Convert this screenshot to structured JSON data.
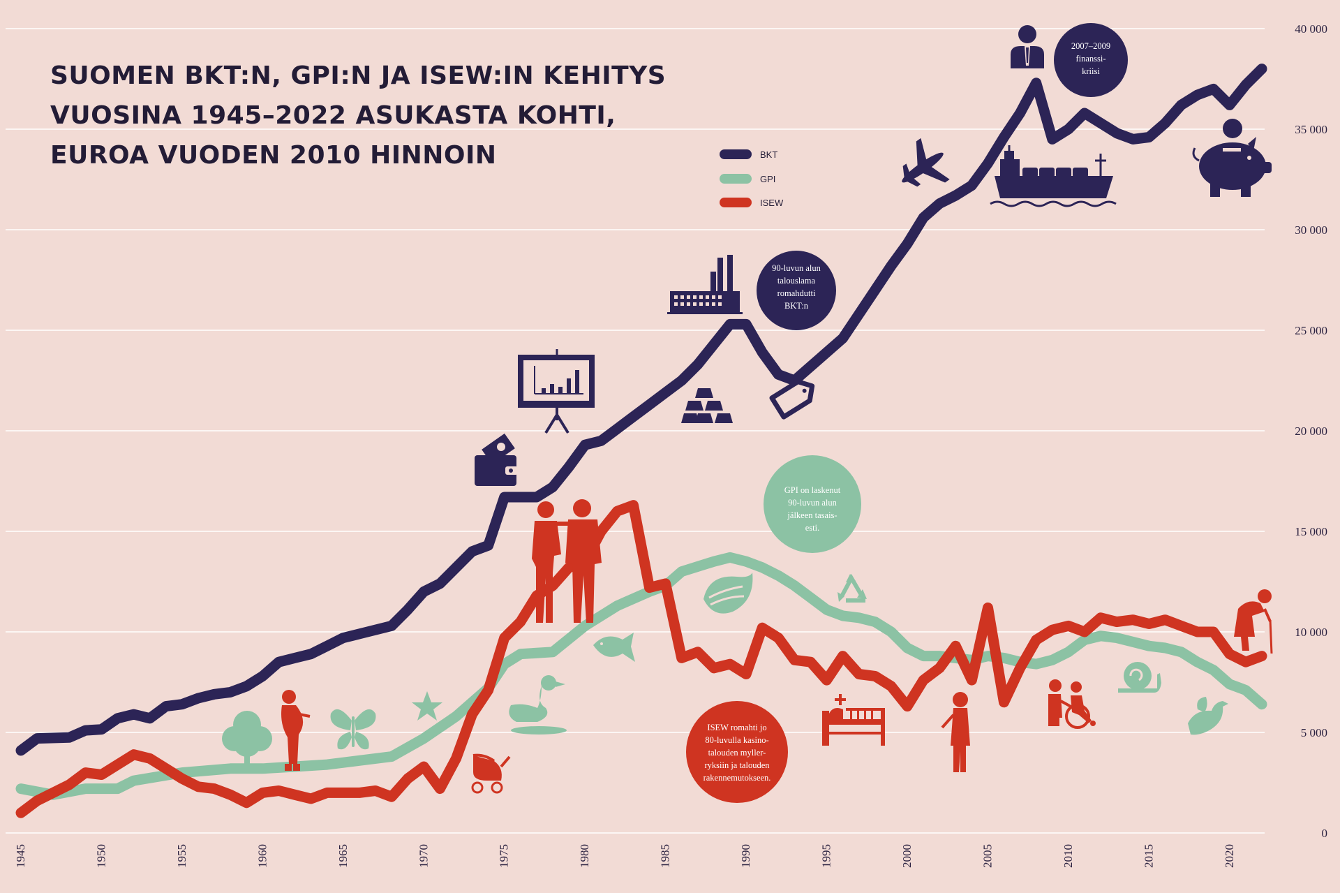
{
  "chart_data": {
    "type": "line",
    "title_lines": [
      "SUOMEN BKT:N, GPI:N JA ISEW:IN KEHITYS",
      "VUOSINA 1945–2022 ASUKASTA KOHTI,",
      "EUROA VUODEN 2010 HINNOIN"
    ],
    "xlim": [
      1945,
      2022
    ],
    "ylim": [
      0,
      40000
    ],
    "x_ticks": [
      "1945",
      "1950",
      "1955",
      "1960",
      "1965",
      "1970",
      "1975",
      "1980",
      "1985",
      "1990",
      "1995",
      "2000",
      "2005",
      "2010",
      "2015",
      "2020"
    ],
    "y_ticks": [
      "0",
      "5 000",
      "10 000",
      "15 000",
      "20 000",
      "25 000",
      "30 000",
      "35 000",
      "40 000"
    ],
    "legend_position": "top-center",
    "grid": "horizontal",
    "colors": {
      "background": "#f2dbd5",
      "BKT": "#2c2456",
      "GPI": "#8cc2a4",
      "ISEW": "#cf3421",
      "grid": "#ffffff"
    },
    "series": [
      {
        "name": "BKT",
        "color": "#2c2456",
        "points": [
          [
            1945,
            4100
          ],
          [
            1946,
            4700
          ],
          [
            1948,
            4750
          ],
          [
            1949,
            5100
          ],
          [
            1950,
            5150
          ],
          [
            1951,
            5700
          ],
          [
            1952,
            5900
          ],
          [
            1953,
            5700
          ],
          [
            1954,
            6300
          ],
          [
            1955,
            6400
          ],
          [
            1956,
            6700
          ],
          [
            1957,
            6900
          ],
          [
            1958,
            7000
          ],
          [
            1959,
            7300
          ],
          [
            1960,
            7800
          ],
          [
            1961,
            8500
          ],
          [
            1962,
            8700
          ],
          [
            1963,
            8900
          ],
          [
            1964,
            9300
          ],
          [
            1965,
            9700
          ],
          [
            1966,
            9900
          ],
          [
            1967,
            10100
          ],
          [
            1968,
            10300
          ],
          [
            1969,
            11100
          ],
          [
            1970,
            12000
          ],
          [
            1971,
            12400
          ],
          [
            1972,
            13200
          ],
          [
            1973,
            14000
          ],
          [
            1974,
            14300
          ],
          [
            1975,
            16700
          ],
          [
            1976,
            16700
          ],
          [
            1977,
            16700
          ],
          [
            1978,
            17200
          ],
          [
            1979,
            18200
          ],
          [
            1980,
            19300
          ],
          [
            1981,
            19500
          ],
          [
            1982,
            20100
          ],
          [
            1983,
            20700
          ],
          [
            1984,
            21300
          ],
          [
            1985,
            21900
          ],
          [
            1986,
            22500
          ],
          [
            1987,
            23300
          ],
          [
            1988,
            24300
          ],
          [
            1989,
            25300
          ],
          [
            1990,
            25300
          ],
          [
            1991,
            23900
          ],
          [
            1992,
            22800
          ],
          [
            1993,
            22500
          ],
          [
            1994,
            23200
          ],
          [
            1995,
            23900
          ],
          [
            1996,
            24600
          ],
          [
            1997,
            25800
          ],
          [
            1998,
            27000
          ],
          [
            1999,
            28200
          ],
          [
            2000,
            29300
          ],
          [
            2001,
            30600
          ],
          [
            2002,
            31300
          ],
          [
            2003,
            31700
          ],
          [
            2004,
            32200
          ],
          [
            2005,
            33300
          ],
          [
            2006,
            34600
          ],
          [
            2007,
            35800
          ],
          [
            2008,
            37300
          ],
          [
            2009,
            34500
          ],
          [
            2010,
            35000
          ],
          [
            2011,
            35800
          ],
          [
            2012,
            35300
          ],
          [
            2013,
            34800
          ],
          [
            2014,
            34500
          ],
          [
            2015,
            34600
          ],
          [
            2016,
            35300
          ],
          [
            2017,
            36200
          ],
          [
            2018,
            36700
          ],
          [
            2019,
            37000
          ],
          [
            2020,
            36200
          ],
          [
            2021,
            37200
          ],
          [
            2022,
            38000
          ]
        ]
      },
      {
        "name": "GPI",
        "color": "#8cc2a4",
        "points": [
          [
            1945,
            2200
          ],
          [
            1947,
            1900
          ],
          [
            1949,
            2200
          ],
          [
            1951,
            2200
          ],
          [
            1952,
            2600
          ],
          [
            1955,
            3000
          ],
          [
            1958,
            3200
          ],
          [
            1960,
            3200
          ],
          [
            1962,
            3300
          ],
          [
            1964,
            3400
          ],
          [
            1966,
            3600
          ],
          [
            1968,
            3800
          ],
          [
            1970,
            4700
          ],
          [
            1972,
            5800
          ],
          [
            1974,
            7200
          ],
          [
            1975,
            8400
          ],
          [
            1976,
            8900
          ],
          [
            1978,
            9000
          ],
          [
            1980,
            10300
          ],
          [
            1982,
            11300
          ],
          [
            1984,
            12000
          ],
          [
            1985,
            12300
          ],
          [
            1986,
            13000
          ],
          [
            1988,
            13500
          ],
          [
            1989,
            13700
          ],
          [
            1990,
            13500
          ],
          [
            1991,
            13200
          ],
          [
            1992,
            12800
          ],
          [
            1993,
            12300
          ],
          [
            1994,
            11700
          ],
          [
            1995,
            11100
          ],
          [
            1996,
            10800
          ],
          [
            1997,
            10700
          ],
          [
            1998,
            10500
          ],
          [
            1999,
            10000
          ],
          [
            2000,
            9200
          ],
          [
            2001,
            8800
          ],
          [
            2002,
            8800
          ],
          [
            2003,
            8700
          ],
          [
            2004,
            8600
          ],
          [
            2005,
            8800
          ],
          [
            2006,
            8700
          ],
          [
            2007,
            8500
          ],
          [
            2008,
            8400
          ],
          [
            2009,
            8600
          ],
          [
            2010,
            9000
          ],
          [
            2011,
            9600
          ],
          [
            2012,
            9800
          ],
          [
            2013,
            9700
          ],
          [
            2014,
            9500
          ],
          [
            2015,
            9300
          ],
          [
            2016,
            9200
          ],
          [
            2017,
            9000
          ],
          [
            2018,
            8500
          ],
          [
            2019,
            8100
          ],
          [
            2020,
            7400
          ],
          [
            2021,
            7100
          ],
          [
            2022,
            6400
          ]
        ]
      },
      {
        "name": "ISEW",
        "color": "#cf3421",
        "points": [
          [
            1945,
            1000
          ],
          [
            1946,
            1600
          ],
          [
            1947,
            2000
          ],
          [
            1948,
            2400
          ],
          [
            1949,
            3000
          ],
          [
            1950,
            2900
          ],
          [
            1951,
            3400
          ],
          [
            1952,
            3900
          ],
          [
            1953,
            3700
          ],
          [
            1954,
            3200
          ],
          [
            1955,
            2700
          ],
          [
            1956,
            2300
          ],
          [
            1957,
            2200
          ],
          [
            1958,
            1900
          ],
          [
            1959,
            1500
          ],
          [
            1960,
            2000
          ],
          [
            1961,
            2100
          ],
          [
            1962,
            1900
          ],
          [
            1963,
            1700
          ],
          [
            1964,
            2000
          ],
          [
            1965,
            2000
          ],
          [
            1966,
            2000
          ],
          [
            1967,
            2100
          ],
          [
            1968,
            1800
          ],
          [
            1969,
            2700
          ],
          [
            1970,
            3300
          ],
          [
            1971,
            2200
          ],
          [
            1972,
            3700
          ],
          [
            1973,
            5900
          ],
          [
            1974,
            7100
          ],
          [
            1975,
            9700
          ],
          [
            1976,
            10500
          ],
          [
            1977,
            11800
          ],
          [
            1978,
            12300
          ],
          [
            1979,
            13200
          ],
          [
            1980,
            13500
          ],
          [
            1981,
            15000
          ],
          [
            1982,
            16000
          ],
          [
            1983,
            16300
          ],
          [
            1984,
            12200
          ],
          [
            1985,
            12400
          ],
          [
            1986,
            8700
          ],
          [
            1987,
            9000
          ],
          [
            1988,
            8200
          ],
          [
            1989,
            8400
          ],
          [
            1990,
            7900
          ],
          [
            1991,
            10200
          ],
          [
            1992,
            9700
          ],
          [
            1993,
            8600
          ],
          [
            1994,
            8500
          ],
          [
            1995,
            7600
          ],
          [
            1996,
            8800
          ],
          [
            1997,
            7900
          ],
          [
            1998,
            7800
          ],
          [
            1999,
            7300
          ],
          [
            2000,
            6300
          ],
          [
            2001,
            7600
          ],
          [
            2002,
            8200
          ],
          [
            2003,
            9300
          ],
          [
            2004,
            7600
          ],
          [
            2005,
            11200
          ],
          [
            2006,
            6500
          ],
          [
            2007,
            8200
          ],
          [
            2008,
            9600
          ],
          [
            2009,
            10100
          ],
          [
            2010,
            10300
          ],
          [
            2011,
            10000
          ],
          [
            2012,
            10700
          ],
          [
            2013,
            10500
          ],
          [
            2014,
            10600
          ],
          [
            2015,
            10400
          ],
          [
            2016,
            10600
          ],
          [
            2017,
            10300
          ],
          [
            2018,
            10000
          ],
          [
            2019,
            10000
          ],
          [
            2020,
            8900
          ],
          [
            2021,
            8500
          ],
          [
            2022,
            8800
          ]
        ]
      }
    ],
    "annotations": [
      {
        "id": "bubble-gdp-drop",
        "lines": [
          "90-luvun alun",
          "talouslama",
          "romahdutti",
          "BKT:n"
        ],
        "color": "#2c2456"
      },
      {
        "id": "bubble-finance-crisis",
        "lines": [
          "2007–2009",
          "finanssi-",
          "kriisi"
        ],
        "color": "#2c2456"
      },
      {
        "id": "bubble-gpi",
        "lines": [
          "GPI on laskenut",
          "90-luvun alun",
          "jälkeen tasais-",
          "esti."
        ],
        "color": "#8cc2a4"
      },
      {
        "id": "bubble-isew",
        "lines": [
          "ISEW romahti jo",
          "80-luvulla kasino-",
          "talouden myller-",
          "ryksiin ja talouden",
          "rakennemutokseen."
        ],
        "color": "#cf3421"
      }
    ]
  },
  "icons": [
    {
      "name": "wallet-icon",
      "color": "#2c2456"
    },
    {
      "name": "presentation-chart-icon",
      "color": "#2c2456"
    },
    {
      "name": "gold-bars-icon",
      "color": "#2c2456"
    },
    {
      "name": "price-tag-icon",
      "color": "#2c2456"
    },
    {
      "name": "factory-icon",
      "color": "#2c2456"
    },
    {
      "name": "airplane-icon",
      "color": "#2c2456"
    },
    {
      "name": "ship-icon",
      "color": "#2c2456"
    },
    {
      "name": "businessman-icon",
      "color": "#2c2456"
    },
    {
      "name": "piggy-bank-icon",
      "color": "#2c2456"
    },
    {
      "name": "tree-icon",
      "color": "#8cc2a4"
    },
    {
      "name": "butterfly-icon",
      "color": "#8cc2a4"
    },
    {
      "name": "starfish-icon",
      "color": "#8cc2a4"
    },
    {
      "name": "duck-icon",
      "color": "#8cc2a4"
    },
    {
      "name": "fish-icon",
      "color": "#8cc2a4"
    },
    {
      "name": "leaf-icon",
      "color": "#8cc2a4"
    },
    {
      "name": "recycle-icon",
      "color": "#8cc2a4"
    },
    {
      "name": "snail-icon",
      "color": "#8cc2a4"
    },
    {
      "name": "bird-icon",
      "color": "#8cc2a4"
    },
    {
      "name": "pregnant-woman-icon",
      "color": "#cf3421"
    },
    {
      "name": "stroller-icon",
      "color": "#cf3421"
    },
    {
      "name": "couple-icon",
      "color": "#cf3421"
    },
    {
      "name": "hospital-bed-icon",
      "color": "#cf3421"
    },
    {
      "name": "child-icon",
      "color": "#cf3421"
    },
    {
      "name": "wheelchair-icon",
      "color": "#cf3421"
    },
    {
      "name": "elderly-icon",
      "color": "#cf3421"
    }
  ]
}
